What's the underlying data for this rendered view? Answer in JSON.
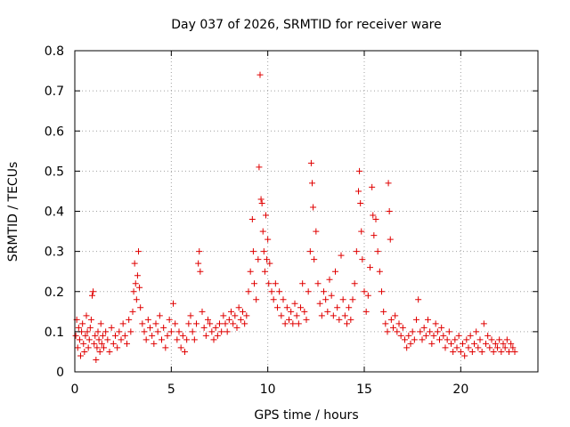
{
  "chart_data": {
    "type": "scatter",
    "title": "Day 037 of 2026, SRMTID for receiver ware",
    "xlabel": "GPS time / hours",
    "ylabel": "SRMTID / TECUs",
    "xlim": [
      0,
      24
    ],
    "ylim": [
      0,
      0.8
    ],
    "x_ticks": [
      0,
      5,
      10,
      15,
      20
    ],
    "x_tick_labels": [
      "0",
      "5",
      "10",
      "15",
      "20"
    ],
    "y_ticks": [
      0,
      0.1,
      0.2,
      0.3,
      0.4,
      0.5,
      0.6,
      0.7,
      0.8
    ],
    "y_tick_labels": [
      "0",
      "0.1",
      "0.2",
      "0.3",
      "0.4",
      "0.5",
      "0.6",
      "0.7",
      "0.8"
    ],
    "grid": true,
    "marker": "+",
    "color": "#e00000",
    "series": [
      {
        "name": "SRMTID",
        "points": [
          [
            0.05,
            0.09
          ],
          [
            0.1,
            0.13
          ],
          [
            0.15,
            0.06
          ],
          [
            0.2,
            0.11
          ],
          [
            0.25,
            0.08
          ],
          [
            0.3,
            0.04
          ],
          [
            0.35,
            0.1
          ],
          [
            0.4,
            0.12
          ],
          [
            0.45,
            0.07
          ],
          [
            0.5,
            0.05
          ],
          [
            0.55,
            0.09
          ],
          [
            0.6,
            0.14
          ],
          [
            0.65,
            0.1
          ],
          [
            0.7,
            0.06
          ],
          [
            0.75,
            0.08
          ],
          [
            0.8,
            0.11
          ],
          [
            0.85,
            0.13
          ],
          [
            0.9,
            0.19
          ],
          [
            0.95,
            0.2
          ],
          [
            1.0,
            0.07
          ],
          [
            1.05,
            0.09
          ],
          [
            1.1,
            0.03
          ],
          [
            1.15,
            0.06
          ],
          [
            1.2,
            0.1
          ],
          [
            1.25,
            0.08
          ],
          [
            1.3,
            0.05
          ],
          [
            1.35,
            0.12
          ],
          [
            1.4,
            0.07
          ],
          [
            1.45,
            0.09
          ],
          [
            1.5,
            0.06
          ],
          [
            1.6,
            0.1
          ],
          [
            1.7,
            0.08
          ],
          [
            1.8,
            0.05
          ],
          [
            1.9,
            0.11
          ],
          [
            2.0,
            0.07
          ],
          [
            2.1,
            0.09
          ],
          [
            2.2,
            0.06
          ],
          [
            2.3,
            0.1
          ],
          [
            2.4,
            0.08
          ],
          [
            2.5,
            0.12
          ],
          [
            2.6,
            0.09
          ],
          [
            2.7,
            0.07
          ],
          [
            2.8,
            0.13
          ],
          [
            2.9,
            0.1
          ],
          [
            3.0,
            0.15
          ],
          [
            3.05,
            0.2
          ],
          [
            3.1,
            0.27
          ],
          [
            3.15,
            0.22
          ],
          [
            3.2,
            0.18
          ],
          [
            3.25,
            0.24
          ],
          [
            3.3,
            0.3
          ],
          [
            3.35,
            0.21
          ],
          [
            3.4,
            0.16
          ],
          [
            3.5,
            0.12
          ],
          [
            3.6,
            0.1
          ],
          [
            3.7,
            0.08
          ],
          [
            3.8,
            0.13
          ],
          [
            3.9,
            0.11
          ],
          [
            4.0,
            0.09
          ],
          [
            4.1,
            0.07
          ],
          [
            4.2,
            0.12
          ],
          [
            4.3,
            0.1
          ],
          [
            4.4,
            0.14
          ],
          [
            4.5,
            0.08
          ],
          [
            4.6,
            0.11
          ],
          [
            4.7,
            0.06
          ],
          [
            4.8,
            0.09
          ],
          [
            4.9,
            0.13
          ],
          [
            5.0,
            0.1
          ],
          [
            5.1,
            0.17
          ],
          [
            5.2,
            0.12
          ],
          [
            5.3,
            0.08
          ],
          [
            5.4,
            0.1
          ],
          [
            5.5,
            0.06
          ],
          [
            5.6,
            0.09
          ],
          [
            5.7,
            0.05
          ],
          [
            5.8,
            0.08
          ],
          [
            5.9,
            0.12
          ],
          [
            6.0,
            0.14
          ],
          [
            6.1,
            0.1
          ],
          [
            6.2,
            0.08
          ],
          [
            6.3,
            0.12
          ],
          [
            6.4,
            0.27
          ],
          [
            6.45,
            0.3
          ],
          [
            6.5,
            0.25
          ],
          [
            6.6,
            0.15
          ],
          [
            6.7,
            0.11
          ],
          [
            6.8,
            0.09
          ],
          [
            6.9,
            0.13
          ],
          [
            7.0,
            0.12
          ],
          [
            7.1,
            0.1
          ],
          [
            7.2,
            0.08
          ],
          [
            7.3,
            0.11
          ],
          [
            7.4,
            0.09
          ],
          [
            7.5,
            0.12
          ],
          [
            7.6,
            0.1
          ],
          [
            7.7,
            0.14
          ],
          [
            7.8,
            0.12
          ],
          [
            7.9,
            0.1
          ],
          [
            8.0,
            0.13
          ],
          [
            8.1,
            0.15
          ],
          [
            8.2,
            0.12
          ],
          [
            8.3,
            0.14
          ],
          [
            8.4,
            0.11
          ],
          [
            8.5,
            0.16
          ],
          [
            8.6,
            0.13
          ],
          [
            8.7,
            0.15
          ],
          [
            8.8,
            0.12
          ],
          [
            8.9,
            0.14
          ],
          [
            9.0,
            0.2
          ],
          [
            9.1,
            0.25
          ],
          [
            9.2,
            0.38
          ],
          [
            9.25,
            0.3
          ],
          [
            9.3,
            0.22
          ],
          [
            9.4,
            0.18
          ],
          [
            9.5,
            0.28
          ],
          [
            9.55,
            0.51
          ],
          [
            9.6,
            0.74
          ],
          [
            9.65,
            0.43
          ],
          [
            9.7,
            0.42
          ],
          [
            9.75,
            0.35
          ],
          [
            9.8,
            0.3
          ],
          [
            9.85,
            0.25
          ],
          [
            9.9,
            0.39
          ],
          [
            9.95,
            0.28
          ],
          [
            10.0,
            0.33
          ],
          [
            10.05,
            0.22
          ],
          [
            10.1,
            0.27
          ],
          [
            10.2,
            0.2
          ],
          [
            10.3,
            0.18
          ],
          [
            10.4,
            0.22
          ],
          [
            10.5,
            0.16
          ],
          [
            10.6,
            0.2
          ],
          [
            10.7,
            0.14
          ],
          [
            10.8,
            0.18
          ],
          [
            10.9,
            0.12
          ],
          [
            11.0,
            0.16
          ],
          [
            11.1,
            0.13
          ],
          [
            11.2,
            0.15
          ],
          [
            11.3,
            0.12
          ],
          [
            11.4,
            0.17
          ],
          [
            11.5,
            0.14
          ],
          [
            11.6,
            0.12
          ],
          [
            11.7,
            0.16
          ],
          [
            11.8,
            0.22
          ],
          [
            11.9,
            0.15
          ],
          [
            12.0,
            0.13
          ],
          [
            12.1,
            0.2
          ],
          [
            12.2,
            0.3
          ],
          [
            12.25,
            0.52
          ],
          [
            12.3,
            0.47
          ],
          [
            12.35,
            0.41
          ],
          [
            12.4,
            0.28
          ],
          [
            12.5,
            0.35
          ],
          [
            12.6,
            0.22
          ],
          [
            12.7,
            0.17
          ],
          [
            12.8,
            0.14
          ],
          [
            12.9,
            0.2
          ],
          [
            13.0,
            0.18
          ],
          [
            13.1,
            0.15
          ],
          [
            13.2,
            0.23
          ],
          [
            13.3,
            0.19
          ],
          [
            13.4,
            0.14
          ],
          [
            13.5,
            0.25
          ],
          [
            13.6,
            0.16
          ],
          [
            13.7,
            0.13
          ],
          [
            13.8,
            0.29
          ],
          [
            13.9,
            0.18
          ],
          [
            14.0,
            0.14
          ],
          [
            14.1,
            0.12
          ],
          [
            14.2,
            0.16
          ],
          [
            14.3,
            0.13
          ],
          [
            14.4,
            0.18
          ],
          [
            14.5,
            0.22
          ],
          [
            14.6,
            0.3
          ],
          [
            14.7,
            0.45
          ],
          [
            14.75,
            0.5
          ],
          [
            14.8,
            0.42
          ],
          [
            14.85,
            0.35
          ],
          [
            14.9,
            0.28
          ],
          [
            15.0,
            0.2
          ],
          [
            15.1,
            0.15
          ],
          [
            15.2,
            0.19
          ],
          [
            15.3,
            0.26
          ],
          [
            15.4,
            0.46
          ],
          [
            15.45,
            0.39
          ],
          [
            15.5,
            0.34
          ],
          [
            15.6,
            0.38
          ],
          [
            15.7,
            0.3
          ],
          [
            15.8,
            0.25
          ],
          [
            15.9,
            0.2
          ],
          [
            16.0,
            0.15
          ],
          [
            16.1,
            0.12
          ],
          [
            16.2,
            0.1
          ],
          [
            16.25,
            0.47
          ],
          [
            16.3,
            0.4
          ],
          [
            16.35,
            0.33
          ],
          [
            16.4,
            0.13
          ],
          [
            16.5,
            0.11
          ],
          [
            16.6,
            0.14
          ],
          [
            16.7,
            0.1
          ],
          [
            16.8,
            0.12
          ],
          [
            16.9,
            0.09
          ],
          [
            17.0,
            0.11
          ],
          [
            17.1,
            0.08
          ],
          [
            17.2,
            0.06
          ],
          [
            17.3,
            0.09
          ],
          [
            17.4,
            0.07
          ],
          [
            17.5,
            0.1
          ],
          [
            17.6,
            0.08
          ],
          [
            17.7,
            0.13
          ],
          [
            17.8,
            0.18
          ],
          [
            17.9,
            0.1
          ],
          [
            18.0,
            0.08
          ],
          [
            18.1,
            0.11
          ],
          [
            18.2,
            0.09
          ],
          [
            18.3,
            0.13
          ],
          [
            18.4,
            0.1
          ],
          [
            18.5,
            0.07
          ],
          [
            18.6,
            0.09
          ],
          [
            18.7,
            0.12
          ],
          [
            18.8,
            0.1
          ],
          [
            18.9,
            0.08
          ],
          [
            19.0,
            0.11
          ],
          [
            19.1,
            0.09
          ],
          [
            19.2,
            0.06
          ],
          [
            19.3,
            0.08
          ],
          [
            19.4,
            0.1
          ],
          [
            19.5,
            0.07
          ],
          [
            19.6,
            0.05
          ],
          [
            19.7,
            0.08
          ],
          [
            19.8,
            0.06
          ],
          [
            19.9,
            0.09
          ],
          [
            20.0,
            0.05
          ],
          [
            20.1,
            0.07
          ],
          [
            20.2,
            0.04
          ],
          [
            20.3,
            0.08
          ],
          [
            20.4,
            0.06
          ],
          [
            20.5,
            0.09
          ],
          [
            20.6,
            0.05
          ],
          [
            20.7,
            0.07
          ],
          [
            20.8,
            0.1
          ],
          [
            20.9,
            0.06
          ],
          [
            21.0,
            0.08
          ],
          [
            21.1,
            0.05
          ],
          [
            21.2,
            0.12
          ],
          [
            21.3,
            0.07
          ],
          [
            21.4,
            0.09
          ],
          [
            21.5,
            0.06
          ],
          [
            21.6,
            0.08
          ],
          [
            21.7,
            0.05
          ],
          [
            21.8,
            0.07
          ],
          [
            21.9,
            0.06
          ],
          [
            22.0,
            0.08
          ],
          [
            22.1,
            0.05
          ],
          [
            22.2,
            0.07
          ],
          [
            22.3,
            0.06
          ],
          [
            22.4,
            0.08
          ],
          [
            22.5,
            0.05
          ],
          [
            22.6,
            0.07
          ],
          [
            22.7,
            0.06
          ],
          [
            22.8,
            0.05
          ]
        ]
      }
    ]
  }
}
